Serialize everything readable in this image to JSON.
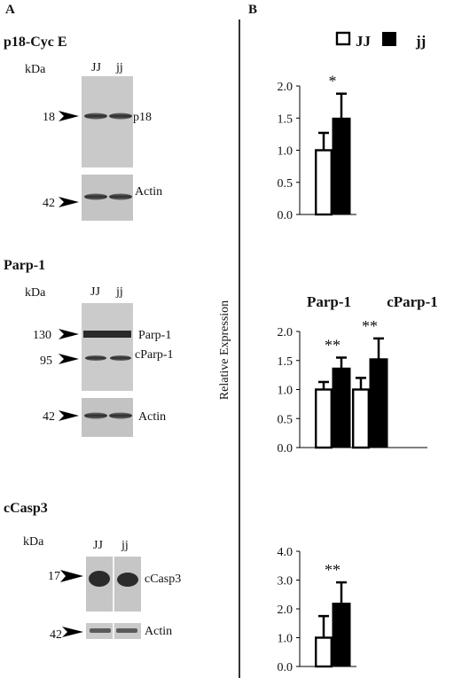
{
  "panels": {
    "a": "A",
    "b": "B"
  },
  "units_label": "kDa",
  "lanes": [
    "JJ",
    "jj"
  ],
  "blots": [
    {
      "heading": "p18-Cyc E",
      "markers": [
        {
          "kda": "18",
          "label": "p18"
        },
        {
          "kda": "42",
          "label": "Actin"
        }
      ]
    },
    {
      "heading": "Parp-1",
      "markers": [
        {
          "kda": "130",
          "label": "Parp-1"
        },
        {
          "kda": "95",
          "label": "cParp-1"
        },
        {
          "kda": "42",
          "label": "Actin"
        }
      ]
    },
    {
      "heading": "cCasp3",
      "markers": [
        {
          "kda": "17",
          "label": "cCasp3"
        },
        {
          "kda": "42",
          "label": "Actin"
        }
      ]
    }
  ],
  "legend": [
    "JJ",
    "jj"
  ],
  "colors": {
    "JJ": "#ffffff",
    "jj": "#000000"
  },
  "chart_data": [
    {
      "type": "bar",
      "title": "",
      "ylabel": "Relative Expression",
      "categories": [
        ""
      ],
      "series": [
        {
          "name": "JJ",
          "values": [
            1.0
          ],
          "errors": [
            0.27
          ]
        },
        {
          "name": "jj",
          "values": [
            1.5
          ],
          "errors": [
            0.38
          ]
        }
      ],
      "significance": [
        "*"
      ],
      "ylim": [
        0,
        2.0
      ],
      "yticks": [
        "0.0",
        "0.5",
        "1.0",
        "1.5",
        "2.0"
      ]
    },
    {
      "type": "bar",
      "title": "",
      "ylabel": "Relative Expression",
      "categories": [
        "Parp-1",
        "cParp-1"
      ],
      "series": [
        {
          "name": "JJ",
          "values": [
            1.0,
            1.0
          ],
          "errors": [
            0.13,
            0.2
          ]
        },
        {
          "name": "jj",
          "values": [
            1.37,
            1.53
          ],
          "errors": [
            0.18,
            0.35
          ]
        }
      ],
      "significance": [
        "**",
        "**"
      ],
      "ylim": [
        0,
        2.0
      ],
      "yticks": [
        "0.0",
        "0.5",
        "1.0",
        "1.5",
        "2.0"
      ]
    },
    {
      "type": "bar",
      "title": "",
      "ylabel": "Relative Expression",
      "categories": [
        ""
      ],
      "series": [
        {
          "name": "JJ",
          "values": [
            1.0
          ],
          "errors": [
            0.75
          ]
        },
        {
          "name": "jj",
          "values": [
            2.2
          ],
          "errors": [
            0.72
          ]
        }
      ],
      "significance": [
        "**"
      ],
      "ylim": [
        0,
        4.0
      ],
      "yticks": [
        "0.0",
        "1.0",
        "2.0",
        "3.0",
        "4.0"
      ]
    }
  ]
}
